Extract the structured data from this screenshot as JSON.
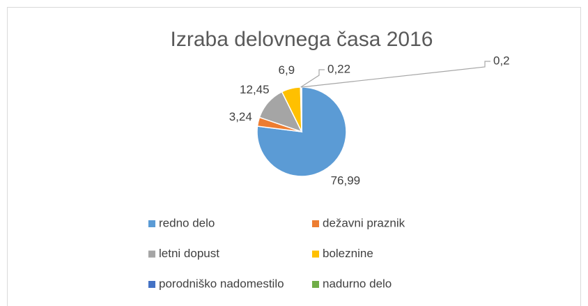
{
  "chart_data": {
    "type": "pie",
    "title": "Izraba delovnega časa 2016",
    "categories": [
      "redno delo",
      "dežavni praznik",
      "letni dopust",
      "boleznine",
      "porodniško nadomestilo",
      "nadurno delo"
    ],
    "values": [
      76.99,
      3.24,
      12.45,
      6.9,
      0.22,
      0.2
    ],
    "value_labels": [
      "76,99",
      "3,24",
      "12,45",
      "6,9",
      "0,22",
      "0,2"
    ],
    "colors": [
      "#5b9bd5",
      "#ed7d31",
      "#a5a5a5",
      "#ffc000",
      "#4472c4",
      "#70ad47"
    ],
    "legend": "bottom"
  }
}
